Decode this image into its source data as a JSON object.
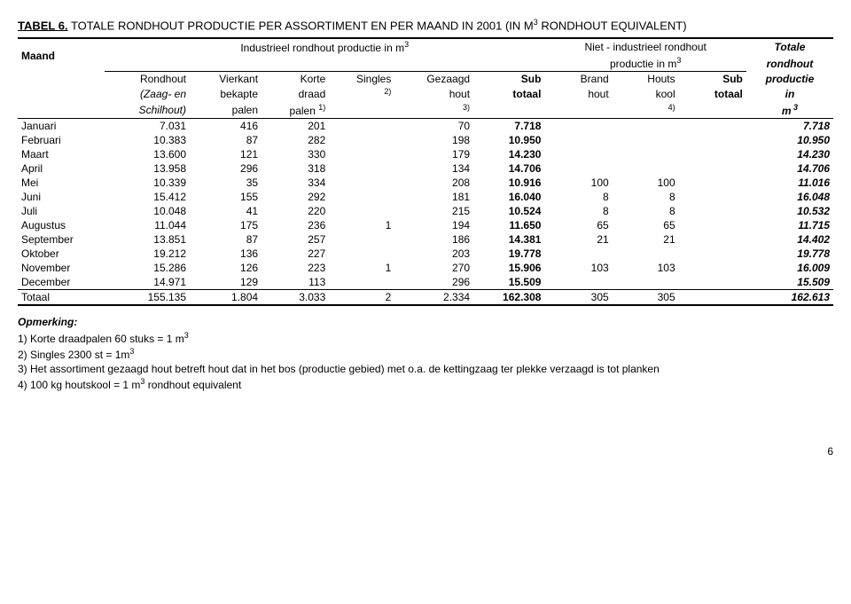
{
  "title": {
    "label": "TABEL 6.",
    "rest": " TOTALE RONDHOUT PRODUCTIE PER ASSORTIMENT EN PER MAAND IN 2001 (IN M",
    "sup": "3",
    "rest2": " RONDHOUT EQUIVALENT)"
  },
  "header": {
    "maand": "Maand",
    "group1": "Industrieel rondhout productie in m",
    "group1_sup": "3",
    "group2a": "Niet - industrieel rondhout",
    "group2b": "productie in m",
    "group2b_sup": "3",
    "totale": "Totale",
    "rondhout": "rondhout",
    "productie": "productie",
    "in": "in",
    "m3": "m",
    "m3_sup": " 3",
    "cols": {
      "c1a": "Rondhout",
      "c1b": "(Zaag- en",
      "c1c": "Schilhout)",
      "c2a": "Vierkant",
      "c2b": "bekapte",
      "c2c": "palen",
      "c3a": "Korte",
      "c3b": "draad",
      "c3c": "palen",
      "c3c_sup": "1)",
      "c4a": "Singles",
      "c4b_sup": "2)",
      "c5a": "Gezaagd",
      "c5b": "hout",
      "c5c_sup": "3)",
      "c6a": "Sub",
      "c6b": "totaal",
      "c7a": "Brand",
      "c7b": "hout",
      "c8a": "Houts",
      "c8b": "kool",
      "c8c_sup": "4)",
      "c9a": "Sub",
      "c9b": "totaal"
    }
  },
  "rows": [
    {
      "m": "Januari",
      "v": [
        "7.031",
        "416",
        "201",
        "",
        "70",
        "7.718",
        "",
        "",
        "",
        "7.718"
      ]
    },
    {
      "m": "Februari",
      "v": [
        "10.383",
        "87",
        "282",
        "",
        "198",
        "10.950",
        "",
        "",
        "",
        "10.950"
      ]
    },
    {
      "m": "Maart",
      "v": [
        "13.600",
        "121",
        "330",
        "",
        "179",
        "14.230",
        "",
        "",
        "",
        "14.230"
      ]
    },
    {
      "m": "April",
      "v": [
        "13.958",
        "296",
        "318",
        "",
        "134",
        "14.706",
        "",
        "",
        "",
        "14.706"
      ]
    },
    {
      "m": "Mei",
      "v": [
        "10.339",
        "35",
        "334",
        "",
        "208",
        "10.916",
        "100",
        "100",
        "",
        "11.016"
      ]
    },
    {
      "m": "Juni",
      "v": [
        "15.412",
        "155",
        "292",
        "",
        "181",
        "16.040",
        "8",
        "8",
        "",
        "16.048"
      ]
    },
    {
      "m": "Juli",
      "v": [
        "10.048",
        "41",
        "220",
        "",
        "215",
        "10.524",
        "8",
        "8",
        "",
        "10.532"
      ]
    },
    {
      "m": "Augustus",
      "v": [
        "11.044",
        "175",
        "236",
        "1",
        "194",
        "11.650",
        "65",
        "65",
        "",
        "11.715"
      ]
    },
    {
      "m": "September",
      "v": [
        "13.851",
        "87",
        "257",
        "",
        "186",
        "14.381",
        "21",
        "21",
        "",
        "14.402"
      ]
    },
    {
      "m": "Oktober",
      "v": [
        "19.212",
        "136",
        "227",
        "",
        "203",
        "19.778",
        "",
        "",
        "",
        "19.778"
      ]
    },
    {
      "m": "November",
      "v": [
        "15.286",
        "126",
        "223",
        "1",
        "270",
        "15.906",
        "103",
        "103",
        "",
        "16.009"
      ]
    },
    {
      "m": "December",
      "v": [
        "14.971",
        "129",
        "113",
        "",
        "296",
        "15.509",
        "",
        "",
        "",
        "15.509"
      ]
    }
  ],
  "total": {
    "label": "Totaal",
    "v": [
      "155.135",
      "1.804",
      "3.033",
      "2",
      "2.334",
      "162.308",
      "305",
      "305",
      "",
      "162.613"
    ]
  },
  "notes": {
    "heading": "Opmerking:",
    "n1": "1) Korte draadpalen 60 stuks = 1 m",
    "n1_sup": "3",
    "n2": "2) Singles 2300 st = 1m",
    "n2_sup": "3",
    "n3": "3) Het assortiment gezaagd hout betreft hout dat in het bos (productie gebied) met o.a. de kettingzaag ter plekke verzaagd is tot planken",
    "n4": "4) 100 kg houtskool = 1 m",
    "n4_sup": "3",
    "n4_rest": " rondhout equivalent"
  },
  "page": "6"
}
